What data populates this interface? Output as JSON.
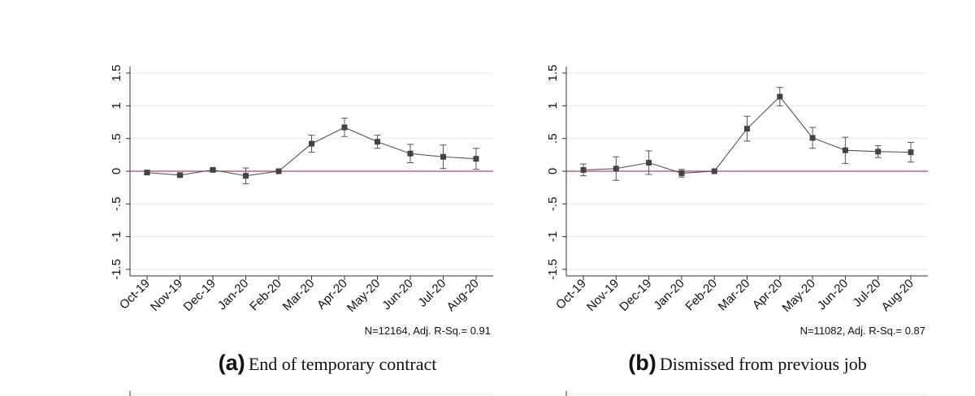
{
  "chart_data": [
    {
      "type": "line",
      "caption_label": "(a)",
      "caption": "End of temporary contract",
      "note": "N=12164, Adj. R-Sq.=  0.91",
      "categories": [
        "Oct-19",
        "Nov-19",
        "Dec-19",
        "Jan-20",
        "Feb-20",
        "Mar-20",
        "Apr-20",
        "May-20",
        "Jun-20",
        "Jul-20",
        "Aug-20"
      ],
      "values": [
        -0.02,
        -0.06,
        0.02,
        -0.07,
        0,
        0.42,
        0.67,
        0.45,
        0.27,
        0.22,
        0.19
      ],
      "errors": [
        0.03,
        0.02,
        0.02,
        0.12,
        0,
        0.13,
        0.14,
        0.1,
        0.14,
        0.18,
        0.16
      ],
      "color": "#555555",
      "refline": 0,
      "refline_color": "#b5485d",
      "ylim": [
        -1.6,
        1.6
      ],
      "yticks": [
        -1.5,
        -1,
        {
          "value": -0.5,
          "label": "-.5"
        },
        0,
        {
          "value": 0.5,
          "label": ".5"
        },
        1,
        1.5
      ],
      "grid": true
    },
    {
      "type": "line",
      "caption_label": "(b)",
      "caption": "Dismissed from previous job",
      "note": "N=11082, Adj. R-Sq.=  0.87",
      "categories": [
        "Oct-19",
        "Nov-19",
        "Dec-19",
        "Jan-20",
        "Feb-20",
        "Mar-20",
        "Apr-20",
        "May-20",
        "Jun-20",
        "Jul-20",
        "Aug-20"
      ],
      "values": [
        0.02,
        0.04,
        0.13,
        -0.03,
        0,
        0.65,
        1.14,
        0.51,
        0.32,
        0.3,
        0.29
      ],
      "errors": [
        0.09,
        0.18,
        0.18,
        0.06,
        0,
        0.19,
        0.14,
        0.16,
        0.2,
        0.09,
        0.15
      ],
      "color": "#555555",
      "refline": 0,
      "refline_color": "#b5485d",
      "ylim": [
        -1.6,
        1.6
      ],
      "yticks": [
        -1.5,
        -1,
        {
          "value": -0.5,
          "label": "-.5"
        },
        0,
        {
          "value": 0.5,
          "label": ".5"
        },
        1,
        1.5
      ],
      "grid": true
    }
  ]
}
